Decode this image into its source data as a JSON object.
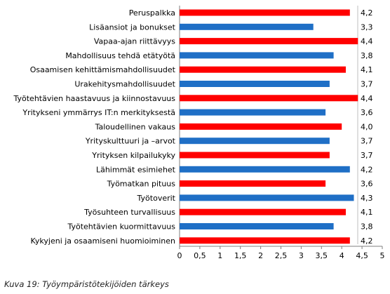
{
  "chart_data": {
    "type": "bar",
    "orientation": "horizontal",
    "categories": [
      "Peruspalkka",
      "Lisäansiot ja bonukset",
      "Vapaa-ajan riittävyys",
      "Mahdollisuus tehdä etätyötä",
      "Osaamisen kehittämismahdollisuudet",
      "Urakehitysmahdollisuudet",
      "Työtehtävien haastavuus ja kiinnostavuus",
      "Yritykseni ymmärrys IT:n merkityksestä",
      "Taloudellinen vakaus",
      "Yrityskulttuuri ja –arvot",
      "Yrityksen kilpailukyky",
      "Lähimmät esimiehet",
      "Työmatkan pituus",
      "Työtoverit",
      "Työsuhteen turvallisuus",
      "Työtehtävien kuormittavuus",
      "Kykyjeni ja osaamiseni huomioiminen"
    ],
    "values": [
      4.2,
      3.3,
      4.4,
      3.8,
      4.1,
      3.7,
      4.4,
      3.6,
      4.0,
      3.7,
      3.7,
      4.2,
      3.6,
      4.3,
      4.1,
      3.8,
      4.2
    ],
    "value_labels": [
      "4,2",
      "3,3",
      "4,4",
      "3,8",
      "4,1",
      "3,7",
      "4,4",
      "3,6",
      "4,0",
      "3,7",
      "3,7",
      "4,2",
      "3,6",
      "4,3",
      "4,1",
      "3,8",
      "4,2"
    ],
    "xlim": [
      0,
      5
    ],
    "x_ticks": [
      "0",
      "0,5",
      "1",
      "1,5",
      "2",
      "2,5",
      "3",
      "3,5",
      "4",
      "4,5",
      "5"
    ],
    "grid": false,
    "legend": "none",
    "colors": [
      "#ff0000",
      "#1f6fc6"
    ]
  },
  "caption": "Kuva 19: Työympäristötekijöiden tärkeys"
}
